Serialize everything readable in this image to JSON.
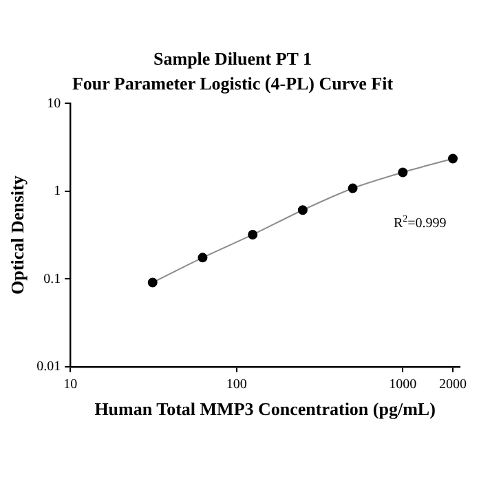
{
  "chart_data": {
    "type": "line",
    "title": "Sample Diluent PT 1",
    "subtitle": "Four Parameter Logistic (4-PL) Curve Fit",
    "xlabel": "Human Total MMP3 Concentration (pg/mL)",
    "ylabel": "Optical Density",
    "x": [
      31.25,
      62.5,
      125,
      250,
      500,
      1000,
      2000
    ],
    "series": [
      {
        "color": "#000000",
        "values": [
          0.091,
          0.175,
          0.32,
          0.61,
          1.08,
          1.64,
          2.35
        ]
      }
    ],
    "log": "xy",
    "xlim": [
      10,
      2200
    ],
    "xticks": [
      10,
      100,
      1000,
      2000
    ],
    "ylim": [
      0.01,
      10
    ],
    "yticks": [
      0.01,
      0.1,
      1,
      10
    ],
    "grid": false,
    "legend": false,
    "marker": "circle",
    "line_style": "solid",
    "annotations": [
      "R$^{2}$=0.999"
    ]
  }
}
